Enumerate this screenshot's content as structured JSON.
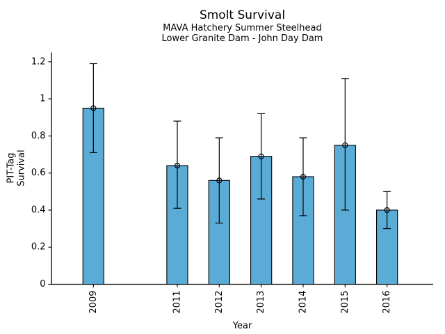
{
  "chart_data": {
    "type": "bar",
    "title": "Smolt Survival",
    "subtitle": [
      "MAVA Hatchery Summer Steelhead",
      "Lower Granite Dam - John Day Dam"
    ],
    "xlabel": "Year",
    "ylabel": "PIT-Tag Survival",
    "categories": [
      "2009",
      "2011",
      "2012",
      "2013",
      "2014",
      "2015",
      "2016"
    ],
    "x_numeric": [
      2009,
      2011,
      2012,
      2013,
      2014,
      2015,
      2016
    ],
    "values": [
      0.95,
      0.64,
      0.56,
      0.69,
      0.58,
      0.75,
      0.4
    ],
    "error_low": [
      0.71,
      0.41,
      0.33,
      0.46,
      0.37,
      0.4,
      0.3
    ],
    "error_high": [
      1.19,
      0.88,
      0.79,
      0.92,
      0.79,
      1.11,
      0.5
    ],
    "xlim": [
      2008,
      2017.1
    ],
    "ylim": [
      0,
      1.25
    ],
    "yticks": {
      "values": [
        0,
        0.2,
        0.4,
        0.6,
        0.8,
        1.0,
        1.2
      ],
      "labels": [
        "0",
        "0.2",
        "0.4",
        "0.6",
        "0.8",
        "1",
        "1.2"
      ]
    },
    "grid": false,
    "legend": "none",
    "bar": {
      "color": "#5AACD6",
      "edge_color": "#000000",
      "width_years": 0.5
    },
    "errorbar": {
      "color": "#000000",
      "marker": "open-circle"
    }
  }
}
